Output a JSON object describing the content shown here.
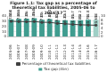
{
  "chart_data": {
    "type": "bar",
    "title": "Figure 1.1: Tax gap as a percentage of theoretical tax liabilities, 2005-06 to 2016-17",
    "categories": [
      "2005-06",
      "2006-07",
      "2007-08",
      "2008-09",
      "2009-10",
      "2010-11",
      "2011-12",
      "2012-13",
      "2013-14",
      "2014-15",
      "2015-16",
      "2016-17"
    ],
    "series": [
      {
        "name": "Tax gap (£bn)",
        "type": "bar",
        "colors": [
          "#3f9c8f",
          "#3f9c8f",
          "#3f9c8f",
          "#3f9c8f",
          "#3f9c8f",
          "#3f9c8f",
          "#3f9c8f",
          "#3f9c8f",
          "#3f9c8f",
          "#3f9c8f",
          "#3f9c8f",
          "#9fcfc6"
        ],
        "values": [
          33.8,
          34.5,
          35.0,
          35.8,
          33.0,
          34.3,
          32.2,
          32.3,
          31.7,
          32.2,
          32.8,
          33.0
        ]
      },
      {
        "name": "Percentage of theoretical tax liabilities",
        "type": "line",
        "axis": "y2",
        "color": "#404040",
        "marker": "circle",
        "values": [
          7.5,
          7.4,
          7.3,
          7.4,
          7.0,
          7.0,
          6.5,
          6.3,
          6.0,
          5.8,
          5.7,
          5.6
        ],
        "value_labels": [
          "7.5%",
          "7.4%",
          "7.3%",
          "7.4%",
          "7.0%",
          "7.0%",
          "6.5%",
          "6.3%",
          "6.0%",
          "5.8%",
          "5.7%",
          "5.6%"
        ]
      }
    ],
    "ylim": [
      0,
      40
    ],
    "yticks": [
      0,
      10,
      20,
      30,
      40
    ],
    "y2lim": [
      0,
      10
    ],
    "y2ticks": [
      0,
      2,
      4,
      6,
      8,
      10
    ],
    "grid": true,
    "legend": "bottom",
    "data_labels": true
  }
}
